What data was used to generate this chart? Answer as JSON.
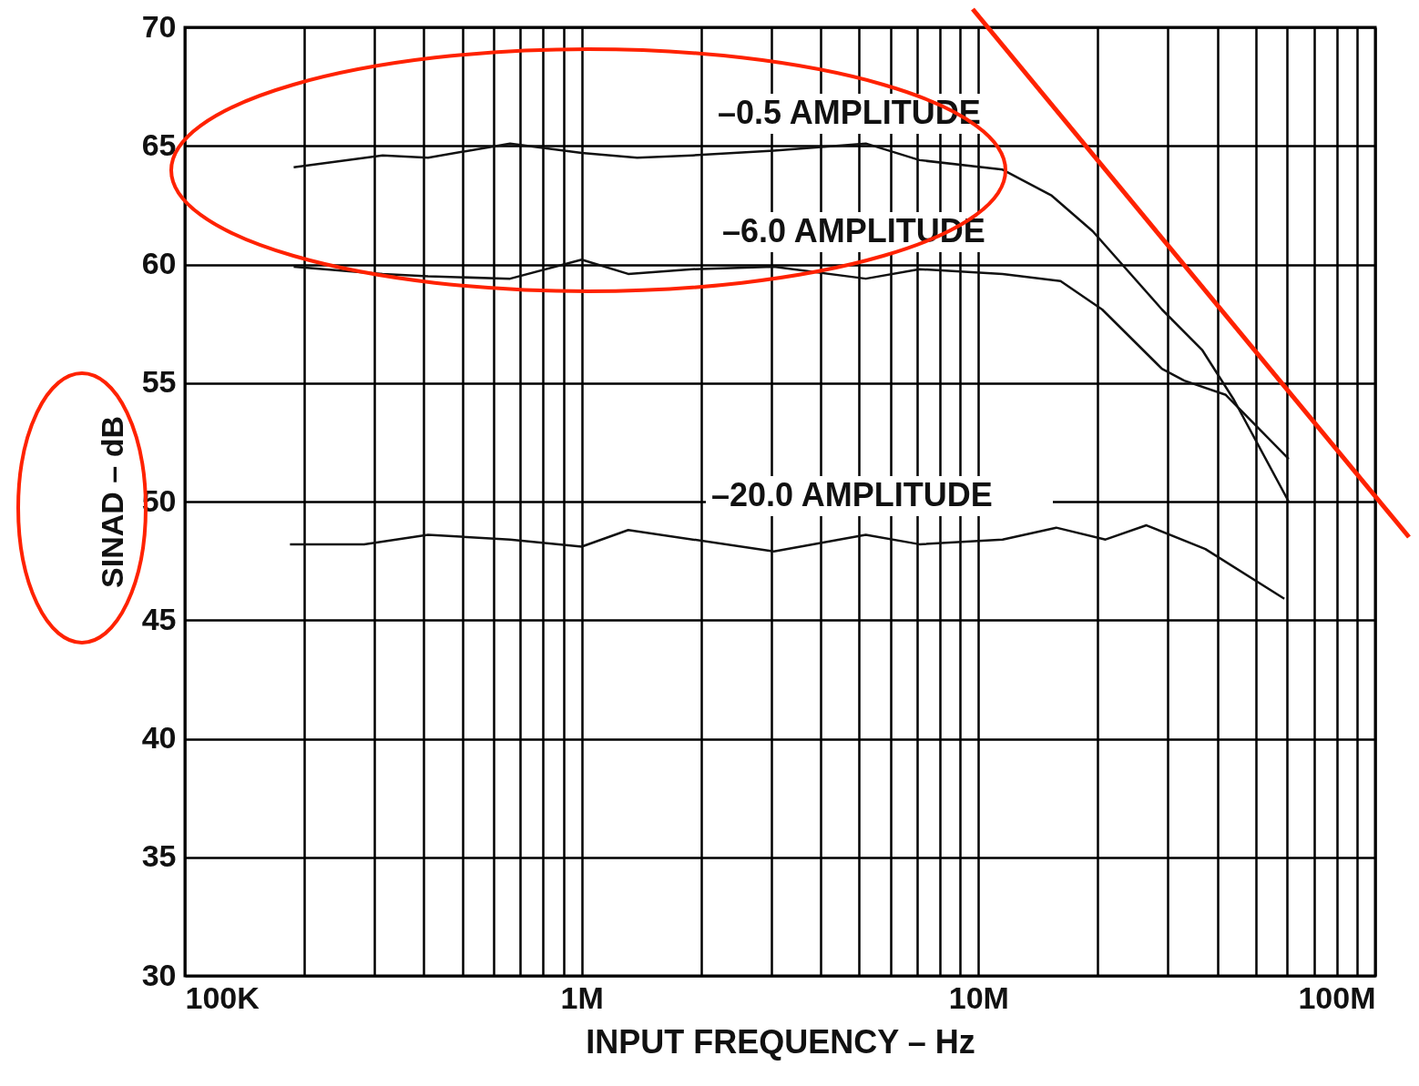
{
  "chart_data": {
    "type": "line",
    "xlabel": "INPUT FREQUENCY – Hz",
    "ylabel": "SINAD – dB",
    "log": "x",
    "grid": true,
    "legend": false,
    "marker": "none",
    "line_style": "solid",
    "xlim": [
      100000,
      100000000
    ],
    "xticks": [
      {
        "value": 100000,
        "label": "100K"
      },
      {
        "value": 200000,
        "label": null
      },
      {
        "value": 300000,
        "label": null
      },
      {
        "value": 400000,
        "label": null
      },
      {
        "value": 500000,
        "label": null
      },
      {
        "value": 600000,
        "label": null
      },
      {
        "value": 700000,
        "label": null
      },
      {
        "value": 800000,
        "label": null
      },
      {
        "value": 900000,
        "label": null
      },
      {
        "value": 1000000,
        "label": "1M"
      },
      {
        "value": 2000000,
        "label": null
      },
      {
        "value": 3000000,
        "label": null
      },
      {
        "value": 4000000,
        "label": null
      },
      {
        "value": 5000000,
        "label": null
      },
      {
        "value": 6000000,
        "label": null
      },
      {
        "value": 7000000,
        "label": null
      },
      {
        "value": 8000000,
        "label": null
      },
      {
        "value": 9000000,
        "label": null
      },
      {
        "value": 10000000,
        "label": "10M"
      },
      {
        "value": 20000000,
        "label": null
      },
      {
        "value": 30000000,
        "label": null
      },
      {
        "value": 40000000,
        "label": null
      },
      {
        "value": 50000000,
        "label": null
      },
      {
        "value": 60000000,
        "label": null
      },
      {
        "value": 70000000,
        "label": null
      },
      {
        "value": 80000000,
        "label": null
      },
      {
        "value": 90000000,
        "label": null
      },
      {
        "value": 100000000,
        "label": "100M"
      }
    ],
    "ylim": [
      30,
      70
    ],
    "yticks": [
      30,
      35,
      40,
      45,
      50,
      55,
      60,
      65,
      70
    ],
    "series": [
      {
        "name": "–0.5 AMPLITUDE",
        "color": "#111111",
        "x": [
          188000,
          315000,
          410000,
          660000,
          1000000,
          1380000,
          1900000,
          3050000,
          5200000,
          7100000,
          11500000,
          15300000,
          19400000,
          29000000,
          36600000,
          44000000,
          60500000
        ],
        "values": [
          64.1,
          64.6,
          64.5,
          65.1,
          64.7,
          64.5,
          64.6,
          64.8,
          65.1,
          64.4,
          64.0,
          62.9,
          61.4,
          58.1,
          56.4,
          54.3,
          50.0
        ]
      },
      {
        "name": "–6.0 AMPLITUDE",
        "color": "#111111",
        "x": [
          188000,
          315000,
          410000,
          660000,
          1000000,
          1310000,
          1900000,
          3050000,
          5200000,
          7100000,
          11500000,
          16100000,
          20500000,
          29000000,
          33000000,
          42000000,
          60500000
        ],
        "values": [
          59.9,
          59.6,
          59.5,
          59.4,
          60.2,
          59.6,
          59.8,
          59.9,
          59.4,
          59.8,
          59.6,
          59.3,
          58.1,
          55.6,
          55.1,
          54.5,
          51.8
        ]
      },
      {
        "name": "–20.0 AMPLITUDE",
        "color": "#111111",
        "x": [
          184000,
          283000,
          410000,
          660000,
          1000000,
          1310000,
          3050000,
          5200000,
          7100000,
          11500000,
          15700000,
          20900000,
          26500000,
          37300000,
          59000000
        ],
        "values": [
          48.2,
          48.2,
          48.6,
          48.4,
          48.1,
          48.8,
          47.9,
          48.6,
          48.2,
          48.4,
          48.9,
          48.4,
          49.0,
          48.0,
          45.9
        ]
      }
    ]
  }
}
